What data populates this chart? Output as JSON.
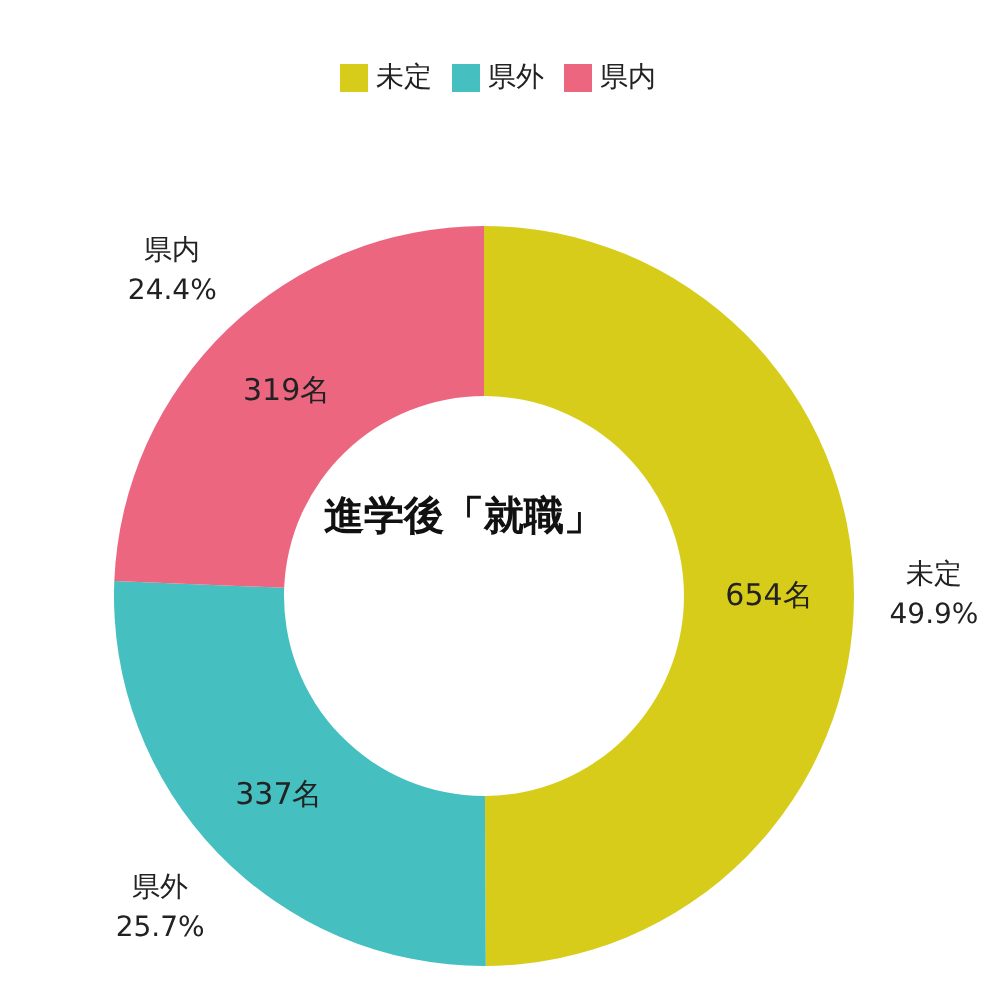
{
  "chart_data": {
    "type": "donut",
    "title": "進学後「就職」",
    "categories": [
      "未定",
      "県外",
      "県内"
    ],
    "values": [
      654,
      337,
      319
    ],
    "value_labels": [
      "654名",
      "337名",
      "319名"
    ],
    "annotations": [
      "49.9%",
      "25.7%",
      "24.4%"
    ],
    "colors": [
      "#d8cc1a",
      "#45bfc0",
      "#ec6680"
    ],
    "legend": "top"
  }
}
